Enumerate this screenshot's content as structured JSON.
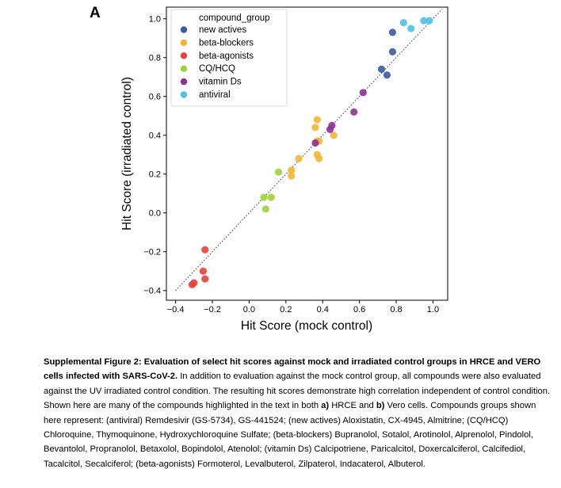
{
  "panel_label": "A",
  "chart_data": {
    "type": "scatter",
    "xlabel": "Hit Score (mock control)",
    "ylabel": "Hit Score (irradiated control)",
    "xlim": [
      -0.45,
      1.08
    ],
    "ylim": [
      -0.45,
      1.06
    ],
    "xticks": [
      -0.4,
      -0.2,
      0.0,
      0.2,
      0.4,
      0.6,
      0.8,
      1.0
    ],
    "yticks": [
      -0.4,
      -0.2,
      0.0,
      0.2,
      0.4,
      0.6,
      0.8,
      1.0
    ],
    "xtick_labels": [
      "−0.4",
      "−0.2",
      "0.0",
      "0.2",
      "0.4",
      "0.6",
      "0.8",
      "1.0"
    ],
    "ytick_labels": [
      "−0.4",
      "−0.2",
      "0.0",
      "0.2",
      "0.4",
      "0.6",
      "0.8",
      "1.0"
    ],
    "identity_line": {
      "from": [
        -0.4,
        -0.4
      ],
      "to": [
        1.05,
        1.05
      ],
      "style": "dotted",
      "color": "#555555"
    },
    "legend": {
      "title": "compound_group",
      "position": "top-left"
    },
    "series": [
      {
        "name": "new actives",
        "color": "#3a5ba0",
        "points": [
          [
            0.78,
            0.93
          ],
          [
            0.78,
            0.83
          ],
          [
            0.72,
            0.74
          ],
          [
            0.75,
            0.71
          ]
        ]
      },
      {
        "name": "beta-blockers",
        "color": "#f2b634",
        "points": [
          [
            0.37,
            0.48
          ],
          [
            0.36,
            0.44
          ],
          [
            0.46,
            0.4
          ],
          [
            0.37,
            0.37
          ],
          [
            0.38,
            0.37
          ],
          [
            0.37,
            0.3
          ],
          [
            0.38,
            0.28
          ],
          [
            0.27,
            0.28
          ],
          [
            0.23,
            0.22
          ],
          [
            0.23,
            0.19
          ]
        ]
      },
      {
        "name": "beta-agonists",
        "color": "#e8413a",
        "points": [
          [
            -0.24,
            -0.19
          ],
          [
            -0.25,
            -0.3
          ],
          [
            -0.24,
            -0.34
          ],
          [
            -0.3,
            -0.36
          ],
          [
            -0.31,
            -0.37
          ]
        ]
      },
      {
        "name": "CQ/HCQ",
        "color": "#9fd13a",
        "points": [
          [
            0.16,
            0.21
          ],
          [
            0.12,
            0.08
          ],
          [
            0.08,
            0.08
          ],
          [
            0.09,
            0.02
          ]
        ]
      },
      {
        "name": "vitamin Ds",
        "color": "#8e3096",
        "points": [
          [
            0.62,
            0.62
          ],
          [
            0.57,
            0.52
          ],
          [
            0.45,
            0.45
          ],
          [
            0.44,
            0.43
          ],
          [
            0.36,
            0.36
          ]
        ]
      },
      {
        "name": "antiviral",
        "color": "#4fc1e8",
        "points": [
          [
            0.84,
            0.98
          ],
          [
            0.95,
            0.99
          ],
          [
            0.98,
            0.99
          ],
          [
            0.88,
            0.95
          ]
        ]
      }
    ]
  },
  "caption": {
    "bold_1": "Supplemental Figure 2: Evaluation of select hit scores against mock and irradiated control groups in HRCE and VERO cells infected with SARS-CoV-2.",
    "text_1": " In addition to evaluation against the mock control group, all compounds were also evaluated against the UV irradiated control condition. The resulting hit scores demonstrate high correlation independent of control condition. Shown here are many of the compounds highlighted in the text in both ",
    "bold_a": "a)",
    "text_2": " HRCE and ",
    "bold_b": "b)",
    "text_3": " Vero cells. Compounds groups shown here represent: (antiviral) Remdesivir (GS-5734), GS-441524; (new actives) Aloxistatin, CX-4945, Almitrine; (CQ/HCQ) Chloroquine, Thymoquinone, Hydroxychloroquine Sulfate; (beta-blockers) Bupranolol, Sotalol, Arotinolol, Alprenolol, Pindolol, Bevantolol, Propranolol, Betaxolol, Bopindolol, Atenolol; (vitamin Ds) Calcipotriene, Paricalcitol, Doxercalciferol, Calcifediol, Tacalcitol, Secalciferol; (beta-agonists) Formoterol, Levalbuterol, Zilpaterol, Indacaterol, Albuterol."
  }
}
